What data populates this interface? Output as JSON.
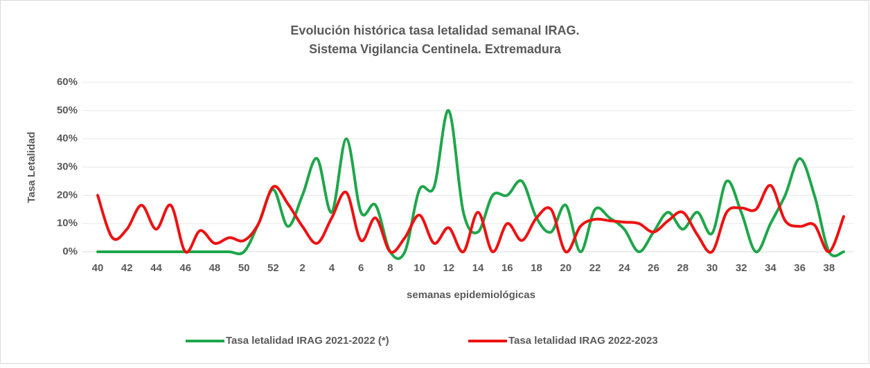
{
  "chart_data": {
    "type": "line",
    "title": "Evolución histórica tasa letalidad semanal IRAG.",
    "subtitle": "Sistema  Vigilancia Centinela. Extremadura",
    "x_label": "semanas epidemiológicas",
    "y_label": "Tasa Letalidad",
    "categories": [
      "40",
      null,
      "42",
      null,
      "44",
      null,
      "46",
      null,
      "48",
      null,
      "50",
      null,
      "52",
      null,
      "2",
      null,
      "4",
      null,
      "6",
      null,
      "8",
      null,
      "10",
      null,
      "12",
      null,
      "14",
      null,
      "16",
      null,
      "18",
      null,
      "20",
      null,
      "22",
      null,
      "24",
      null,
      "26",
      null,
      "28",
      null,
      "30",
      null,
      "32",
      null,
      "34",
      null,
      "36",
      null,
      "38",
      null
    ],
    "series": [
      {
        "name": "Tasa letalidad IRAG 2021-2022 (*)",
        "color": "#1ea64a",
        "values": [
          0,
          0,
          0,
          0,
          0,
          0,
          0,
          0,
          0,
          0,
          0,
          10,
          22,
          9,
          20,
          33,
          14,
          40,
          14,
          16.5,
          0,
          0,
          22,
          23,
          50,
          14,
          7,
          20,
          20,
          25,
          12,
          7,
          16.5,
          0,
          15,
          12,
          8,
          0,
          7,
          14,
          8,
          14,
          6.5,
          25,
          14,
          0,
          10,
          20,
          33,
          20,
          0,
          0
        ]
      },
      {
        "name": "Tasa letalidad IRAG 2022-2023",
        "color": "#ee1111",
        "values": [
          20,
          5,
          8,
          16.5,
          8,
          16.5,
          0,
          7.5,
          3,
          5,
          4,
          10,
          23,
          17,
          9,
          3,
          12,
          21,
          4,
          12,
          0,
          5,
          13,
          3,
          8.5,
          0,
          14,
          0,
          10,
          4,
          12,
          15,
          0,
          9,
          11.5,
          11,
          10.5,
          10,
          7,
          11,
          14,
          6,
          0,
          14,
          15.5,
          15,
          23.5,
          11,
          9,
          9.5,
          0,
          12.5
        ]
      }
    ],
    "ylim": [
      0,
      60
    ],
    "yticks": [
      {
        "value": 0,
        "label": "0%"
      },
      {
        "value": 10,
        "label": "10%"
      },
      {
        "value": 20,
        "label": "20%"
      },
      {
        "value": 30,
        "label": "30%"
      },
      {
        "value": 40,
        "label": "40%"
      },
      {
        "value": 50,
        "label": "50%"
      },
      {
        "value": 60,
        "label": "60%"
      }
    ],
    "grid": true,
    "legend": "bottom"
  }
}
